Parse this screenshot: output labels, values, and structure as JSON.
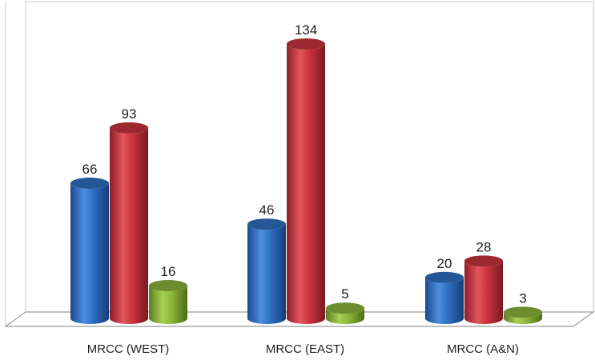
{
  "chart_data": {
    "type": "bar",
    "style": "3d-cylinder",
    "categories": [
      "MRCC (WEST)",
      "MRCC (EAST)",
      "MRCC (A&N)"
    ],
    "series": [
      {
        "values": [
          66,
          46,
          20
        ],
        "color": "#2e6fc0"
      },
      {
        "values": [
          93,
          134,
          28
        ],
        "color": "#c8333c"
      },
      {
        "values": [
          16,
          5,
          3
        ],
        "color": "#8ab43a"
      }
    ],
    "data_labels": true,
    "title": "",
    "xlabel": "",
    "ylabel": "",
    "ylim": [
      0,
      150
    ],
    "grid": false,
    "legend": "none"
  }
}
